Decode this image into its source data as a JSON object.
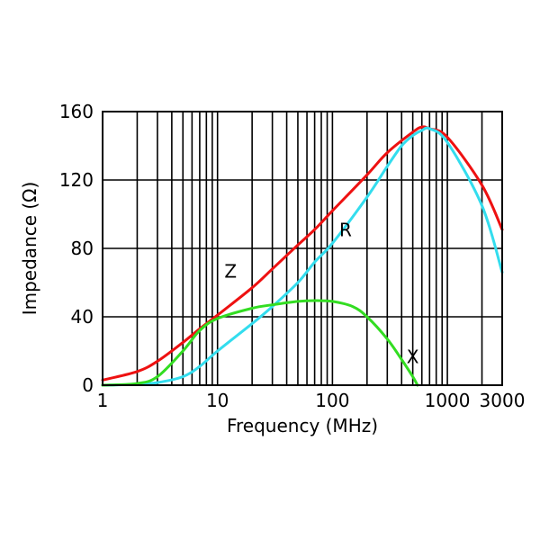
{
  "chart_data": {
    "type": "line",
    "title": "",
    "xlabel": "Frequency (MHz)",
    "ylabel": "Impedance (Ω)",
    "xscale": "log",
    "xlim": [
      1,
      3000
    ],
    "ylim": [
      0,
      160
    ],
    "grid": true,
    "x_ticks": [
      1,
      10,
      100,
      1000,
      3000
    ],
    "x_tick_labels": [
      "1",
      "10",
      "100",
      "1000",
      "3000"
    ],
    "y_ticks": [
      0,
      40,
      80,
      120,
      160
    ],
    "y_tick_labels": [
      "0",
      "40",
      "80",
      "120",
      "160"
    ],
    "series": [
      {
        "name": "Z",
        "color": "#ee1111",
        "x": [
          1,
          2,
          3,
          5,
          7,
          10,
          20,
          30,
          50,
          70,
          100,
          200,
          300,
          500,
          600,
          700,
          1000,
          2000,
          3000
        ],
        "values": [
          3,
          8,
          14,
          25,
          33,
          41,
          57,
          68,
          82,
          91,
          102,
          123,
          136,
          148,
          151,
          150,
          145,
          117,
          91
        ]
      },
      {
        "name": "R",
        "color": "#33ddee",
        "x": [
          1,
          2,
          3,
          5,
          7,
          10,
          20,
          30,
          50,
          70,
          100,
          200,
          300,
          400,
          500,
          600,
          700,
          1000,
          2000,
          3000
        ],
        "values": [
          0,
          0.5,
          1.5,
          5,
          11,
          20,
          36,
          46,
          60,
          72,
          83,
          110,
          128,
          140,
          146,
          149,
          150,
          142,
          105,
          66
        ]
      },
      {
        "name": "X",
        "color": "#33dd22",
        "x": [
          1,
          2,
          3,
          5,
          7,
          10,
          20,
          30,
          50,
          70,
          100,
          150,
          200,
          300,
          400,
          500,
          550
        ],
        "values": [
          0,
          1,
          5,
          20,
          32,
          39,
          45,
          47,
          49,
          49.5,
          49,
          46,
          40,
          27,
          15,
          5,
          0
        ]
      }
    ],
    "annotations": [
      {
        "text": "Z",
        "x": 13,
        "y": 63
      },
      {
        "text": "R",
        "x": 130,
        "y": 87
      },
      {
        "text": "X",
        "x": 500,
        "y": 13
      }
    ]
  }
}
